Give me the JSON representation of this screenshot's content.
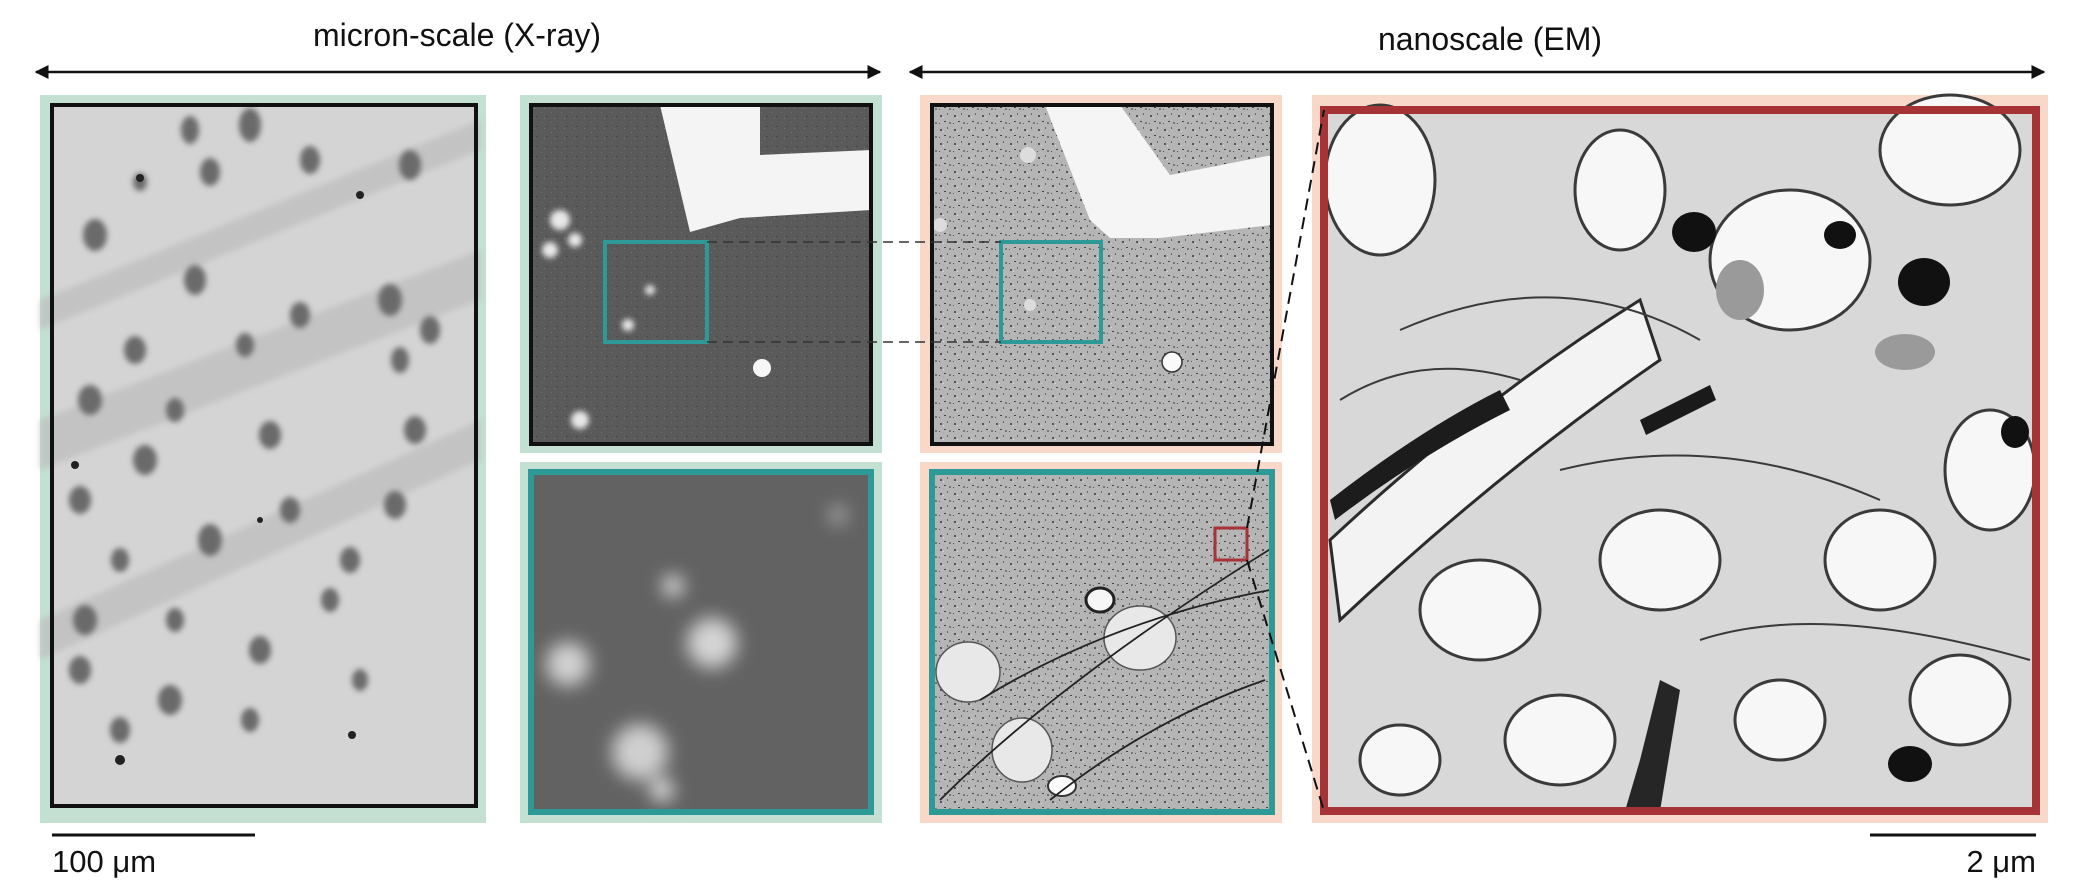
{
  "headers": {
    "xray": "micron-scale (X-ray)",
    "em": "nanoscale (EM)"
  },
  "scale_bars": {
    "left_label": "100 μm",
    "right_label": "2 μm"
  },
  "colors": {
    "xray_bg": "#c3e0d2",
    "em_bg": "#f7d8c9",
    "teal": "#2e9a97",
    "red": "#a63437",
    "frame": "#111111"
  },
  "panels": [
    {
      "id": "xray-overview",
      "modality": "X-ray",
      "frame": "black"
    },
    {
      "id": "xray-crop-overview",
      "modality": "X-ray",
      "frame": "black"
    },
    {
      "id": "xray-zoom",
      "modality": "X-ray",
      "frame": "teal"
    },
    {
      "id": "em-overview",
      "modality": "EM",
      "frame": "black"
    },
    {
      "id": "em-zoom",
      "modality": "EM",
      "frame": "teal"
    },
    {
      "id": "em-high-res",
      "modality": "EM",
      "frame": "red"
    }
  ]
}
